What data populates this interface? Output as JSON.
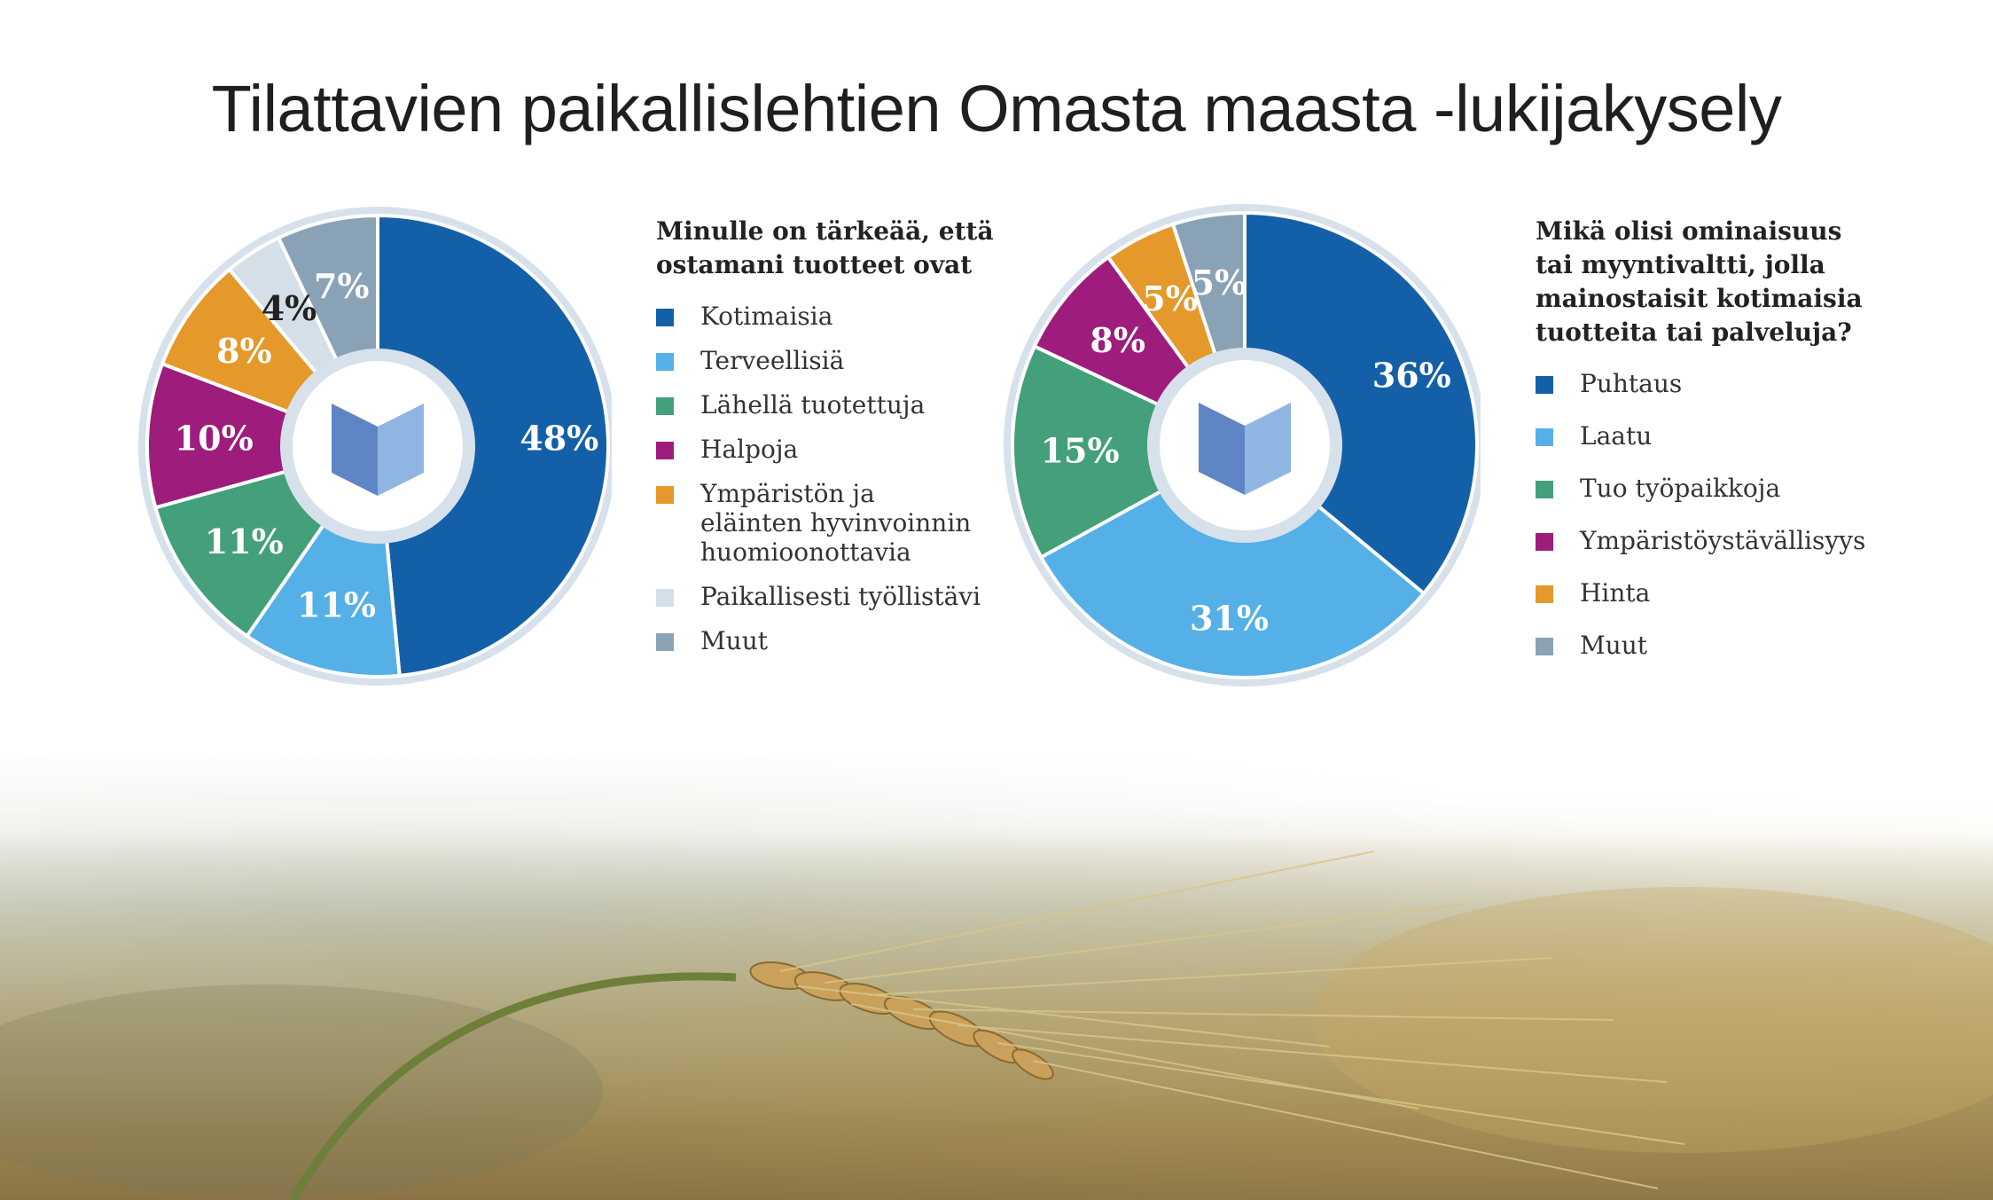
{
  "title": "Tilattavien paikallislehtien Omasta maasta -lukijakysely",
  "chart_data": [
    {
      "type": "pie",
      "title": "Minulle on tärkeää, että\nostamani tuotteet ovat",
      "categories": [
        "Kotimaisia",
        "Terveellisiä",
        "Lähellä tuotettuja",
        "Halpoja",
        "Ympäristön ja\neläinten hyvinvoinnin\nhuomioonottavia",
        "Paikallisesti työllistävi",
        "Muut"
      ],
      "values": [
        48,
        11,
        11,
        10,
        8,
        4,
        7
      ],
      "labels": [
        "48%",
        "11%",
        "11%",
        "10%",
        "8%",
        "4%",
        "7%"
      ],
      "colors": [
        "#1460a8",
        "#55b0e8",
        "#44a07a",
        "#9e1c7c",
        "#e4992a",
        "#d5dfe8",
        "#8aa2b6"
      ],
      "label_colors": [
        "#ffffff",
        "#ffffff",
        "#ffffff",
        "#ffffff",
        "#ffffff",
        "#222222",
        "#ffffff"
      ]
    },
    {
      "type": "pie",
      "title": "Mikä olisi ominaisuus\ntai myyntivaltti, jolla\nmainostaisit kotimaisia\ntuotteita tai palveluja?",
      "categories": [
        "Puhtaus",
        "Laatu",
        "Tuo työpaikkoja",
        "Ympäristöystävällisyys",
        "Hinta",
        "Muut"
      ],
      "values": [
        36,
        31,
        15,
        8,
        5,
        5
      ],
      "labels": [
        "36%",
        "31%",
        "15%",
        "8%",
        "5%",
        "5%"
      ],
      "colors": [
        "#1460a8",
        "#55b0e8",
        "#44a07a",
        "#9e1c7c",
        "#e4992a",
        "#8aa2b6"
      ],
      "label_colors": [
        "#ffffff",
        "#ffffff",
        "#ffffff",
        "#ffffff",
        "#ffffff",
        "#ffffff"
      ]
    }
  ],
  "logo_icon": "open-book-icon"
}
